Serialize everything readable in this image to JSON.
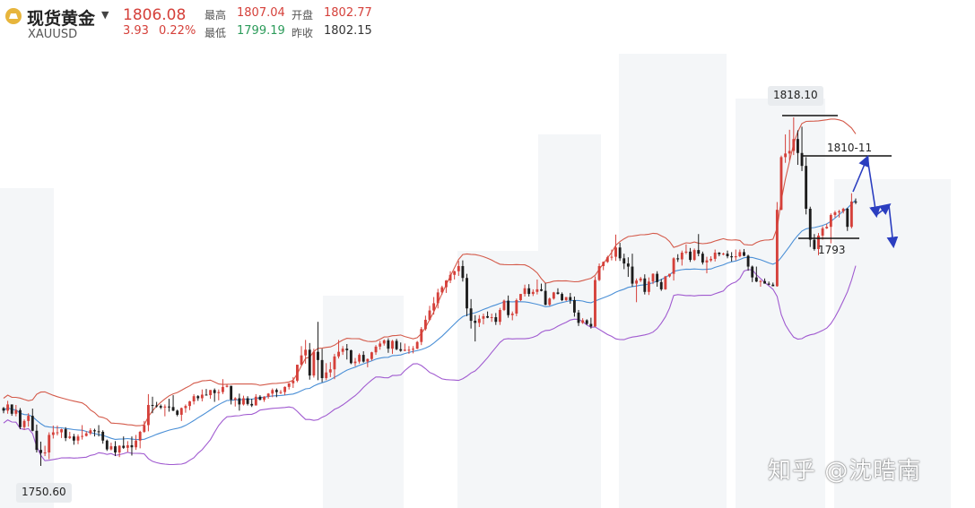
{
  "header": {
    "title": "现货黄金",
    "symbol": "XAUUSD",
    "price": "1806.08",
    "change": "3.93",
    "change_pct": "0.22%",
    "high_label": "最高",
    "high": "1807.04",
    "open_label": "开盘",
    "open": "1802.77",
    "low_label": "最低",
    "low": "1799.19",
    "prev_close_label": "昨收",
    "prev_close": "1802.15"
  },
  "watermark": "知乎 @沈晧南",
  "colors": {
    "up": "#d5403a",
    "down": "#1c1c1c",
    "upper_band": "#d45a4a",
    "middle_band": "#4a8fd6",
    "lower_band": "#a05ad0",
    "arrows": "#2b3ec0"
  },
  "chart_data": {
    "type": "candlestick",
    "indicator": "bollinger bands",
    "y_axis": {
      "min_label": "1750.60",
      "max_label": "1818.10"
    },
    "annotations": [
      {
        "text": "1818.10",
        "kind": "peak-label"
      },
      {
        "text": "1810-11",
        "kind": "resistance-line"
      },
      {
        "text": "1793",
        "kind": "support-line"
      },
      {
        "text": "1750.60",
        "kind": "low-label"
      }
    ],
    "projected_path": "up to 1810-11 resistance, pull back, small rebound, then decline",
    "candles": [
      [
        1761.8,
        1762,
        1760.8,
        1761.3
      ],
      [
        1761.3,
        1763.2,
        1760.7,
        1762.5
      ],
      [
        1762.5,
        1762.5,
        1760.3,
        1760.7
      ],
      [
        1760.7,
        1762.4,
        1760.2,
        1761.4
      ],
      [
        1761.4,
        1761.8,
        1757.7,
        1758.1
      ],
      [
        1758.1,
        1759.6,
        1757.6,
        1759.3
      ],
      [
        1759.3,
        1760.8,
        1758.2,
        1760.3
      ],
      [
        1760.3,
        1761.7,
        1757.3,
        1757.4
      ],
      [
        1757.4,
        1758.6,
        1753.2,
        1753.7
      ],
      [
        1753.7,
        1755.3,
        1750.6,
        1753.1
      ],
      [
        1753.1,
        1754.5,
        1752.5,
        1753.2
      ],
      [
        1753.2,
        1757.1,
        1751.9,
        1756.6
      ],
      [
        1756.6,
        1758.4,
        1755.9,
        1757.1
      ],
      [
        1757.1,
        1758.4,
        1756.5,
        1757.1
      ],
      [
        1757.1,
        1757.8,
        1756,
        1757.7
      ],
      [
        1757.7,
        1758.1,
        1755.4,
        1756
      ],
      [
        1756,
        1757.2,
        1755.8,
        1756.3
      ],
      [
        1756.3,
        1756.8,
        1754.7,
        1755.5
      ],
      [
        1755.5,
        1756.7,
        1754.8,
        1756.3
      ],
      [
        1756.3,
        1758.5,
        1755.7,
        1756.4
      ],
      [
        1756.4,
        1757.3,
        1756.3,
        1756.9
      ],
      [
        1756.9,
        1757.9,
        1756.6,
        1757.5
      ],
      [
        1757.5,
        1757.8,
        1756.3,
        1757.3
      ],
      [
        1757.3,
        1758.5,
        1756.3,
        1757.2
      ],
      [
        1757.2,
        1757.5,
        1754.9,
        1755.5
      ],
      [
        1755.5,
        1755.7,
        1753.5,
        1753.8
      ],
      [
        1753.8,
        1755.1,
        1753.6,
        1754.4
      ],
      [
        1754.4,
        1755.4,
        1752.5,
        1753.2
      ],
      [
        1753.2,
        1754.6,
        1752.3,
        1754.5
      ],
      [
        1754.5,
        1756.3,
        1753.9,
        1754.1
      ],
      [
        1754.1,
        1755.4,
        1753.3,
        1754.6
      ],
      [
        1754.6,
        1756.3,
        1752.6,
        1754.2
      ],
      [
        1754.2,
        1756.6,
        1753.7,
        1755.5
      ],
      [
        1755.5,
        1757.4,
        1754,
        1757.2
      ],
      [
        1757.2,
        1759.3,
        1757,
        1758.5
      ],
      [
        1758.5,
        1764.5,
        1757.3,
        1762.4
      ],
      [
        1762.4,
        1764,
        1760.8,
        1762.3
      ],
      [
        1762.3,
        1763,
        1761.9,
        1762.2
      ],
      [
        1762.2,
        1762.5,
        1761.6,
        1761.9
      ],
      [
        1761.9,
        1762.5,
        1760.2,
        1762.1
      ],
      [
        1762.1,
        1763.6,
        1761.1,
        1762
      ],
      [
        1762,
        1764.3,
        1761.2,
        1761.3
      ],
      [
        1761.3,
        1761.5,
        1760.2,
        1760.5
      ],
      [
        1760.5,
        1761.9,
        1759.3,
        1761.8
      ],
      [
        1761.8,
        1762.5,
        1760.9,
        1762.2
      ],
      [
        1762.2,
        1763.2,
        1761.4,
        1763.1
      ],
      [
        1763.1,
        1764.5,
        1762.5,
        1764.1
      ],
      [
        1764.1,
        1764.3,
        1763.2,
        1763.7
      ],
      [
        1763.7,
        1765.4,
        1763.1,
        1764.4
      ],
      [
        1764.4,
        1765.5,
        1764.3,
        1764.3
      ],
      [
        1764.3,
        1765.3,
        1763.6,
        1765.3
      ],
      [
        1765.3,
        1765.6,
        1763,
        1764.7
      ],
      [
        1764.7,
        1765.4,
        1763.3,
        1764.9
      ],
      [
        1764.9,
        1767.4,
        1764.5,
        1765.9
      ],
      [
        1765.9,
        1766.4,
        1765.8,
        1766.1
      ],
      [
        1766.1,
        1766.1,
        1762.5,
        1763.4
      ],
      [
        1763.4,
        1763.9,
        1762.1,
        1763.7
      ],
      [
        1763.7,
        1764.6,
        1761.3,
        1762.5
      ],
      [
        1762.5,
        1764.2,
        1762.3,
        1763.7
      ],
      [
        1763.7,
        1764.1,
        1762.3,
        1762.6
      ],
      [
        1762.6,
        1763.6,
        1762,
        1762.3
      ],
      [
        1762.3,
        1764.5,
        1762.3,
        1764
      ],
      [
        1764,
        1764.3,
        1763.3,
        1763.4
      ],
      [
        1763.4,
        1764.1,
        1763,
        1764
      ],
      [
        1764,
        1764.7,
        1763.6,
        1764.6
      ],
      [
        1764.6,
        1765.6,
        1763.9,
        1765.3
      ],
      [
        1765.3,
        1765.6,
        1763.9,
        1764.9
      ],
      [
        1764.9,
        1765.3,
        1764.5,
        1764.9
      ],
      [
        1764.9,
        1766,
        1764.3,
        1765.9
      ],
      [
        1765.9,
        1766.6,
        1765.4,
        1766.6
      ],
      [
        1766.6,
        1767.8,
        1765.7,
        1767.1
      ],
      [
        1767.1,
        1770.2,
        1766.8,
        1770.2
      ],
      [
        1770.2,
        1773.8,
        1770,
        1772
      ],
      [
        1772,
        1775,
        1770.4,
        1773.1
      ],
      [
        1773.1,
        1774.4,
        1767.3,
        1768.1
      ],
      [
        1768.1,
        1773.3,
        1767.7,
        1772.7
      ],
      [
        1772.7,
        1778.5,
        1767.2,
        1771.1
      ],
      [
        1771.1,
        1773.3,
        1766.8,
        1767.6
      ],
      [
        1767.6,
        1770.5,
        1767.2,
        1768.7
      ],
      [
        1768.7,
        1770.7,
        1767.8,
        1769.3
      ],
      [
        1769.3,
        1772.3,
        1767.4,
        1771.8
      ],
      [
        1771.8,
        1775,
        1771.4,
        1772.7
      ],
      [
        1772.7,
        1773.8,
        1772.1,
        1773.3
      ],
      [
        1773.3,
        1774.2,
        1771.2,
        1773
      ],
      [
        1773,
        1773.1,
        1770.3,
        1770.5
      ],
      [
        1770.5,
        1771.5,
        1769.9,
        1770.8
      ],
      [
        1770.8,
        1772.4,
        1770.4,
        1772.1
      ],
      [
        1772.1,
        1772.8,
        1770.6,
        1770.8
      ],
      [
        1770.8,
        1771.4,
        1769.7,
        1771.3
      ],
      [
        1771.3,
        1772.7,
        1771,
        1772.6
      ],
      [
        1772.6,
        1774,
        1772.1,
        1773.7
      ],
      [
        1773.7,
        1774.8,
        1773.1,
        1774.3
      ],
      [
        1774.3,
        1775.1,
        1773.9,
        1774.9
      ],
      [
        1774.9,
        1775.3,
        1772.5,
        1773.3
      ],
      [
        1773.3,
        1775,
        1772.3,
        1774.8
      ],
      [
        1774.8,
        1775.2,
        1773,
        1773.2
      ],
      [
        1773.2,
        1774.5,
        1772.7,
        1772.9
      ],
      [
        1772.9,
        1774.3,
        1772.8,
        1773.1
      ],
      [
        1773.1,
        1773.8,
        1772.3,
        1773.1
      ],
      [
        1773.1,
        1773.8,
        1772.4,
        1773.3
      ],
      [
        1773.3,
        1774.8,
        1773.2,
        1774.6
      ],
      [
        1774.6,
        1777.5,
        1774,
        1777.1
      ],
      [
        1777.1,
        1779.7,
        1776.8,
        1778.9
      ],
      [
        1778.9,
        1781.6,
        1778.7,
        1780.7
      ],
      [
        1780.7,
        1783.3,
        1779.9,
        1782.1
      ],
      [
        1782.1,
        1784.9,
        1781.1,
        1784.2
      ],
      [
        1784.2,
        1785.5,
        1783.8,
        1785.2
      ],
      [
        1785.2,
        1786.6,
        1784.1,
        1786.5
      ],
      [
        1786.5,
        1788.3,
        1786,
        1787.6
      ],
      [
        1787.6,
        1788.4,
        1786.7,
        1788.3
      ],
      [
        1788.3,
        1790.3,
        1787.4,
        1789.3
      ],
      [
        1789.3,
        1790.4,
        1786.3,
        1787
      ],
      [
        1787,
        1787.8,
        1779.6,
        1781.1
      ],
      [
        1781.1,
        1782.9,
        1777.2,
        1778.7
      ],
      [
        1778.7,
        1779.8,
        1774.7,
        1778.3
      ],
      [
        1778.3,
        1779.8,
        1777.5,
        1779.1
      ],
      [
        1779.1,
        1780.1,
        1778,
        1779.6
      ],
      [
        1779.6,
        1780.5,
        1779.2,
        1779.3
      ],
      [
        1779.3,
        1780.1,
        1778.5,
        1779.4
      ],
      [
        1779.4,
        1780.2,
        1777.9,
        1778.5
      ],
      [
        1778.5,
        1781.2,
        1777.9,
        1780.8
      ],
      [
        1780.8,
        1782.8,
        1780.6,
        1782.6
      ],
      [
        1782.6,
        1783.6,
        1779.3,
        1779.8
      ],
      [
        1779.8,
        1780.5,
        1778.8,
        1780.1
      ],
      [
        1780.1,
        1783,
        1779.6,
        1782.7
      ],
      [
        1782.7,
        1783.9,
        1782.5,
        1783.9
      ],
      [
        1783.9,
        1785.7,
        1783.4,
        1785
      ],
      [
        1785,
        1785.8,
        1783.4,
        1783.9
      ],
      [
        1783.9,
        1784.8,
        1783.5,
        1784.3
      ],
      [
        1784.3,
        1786.7,
        1783.8,
        1784.8
      ],
      [
        1784.8,
        1785.9,
        1784.4,
        1784.5
      ],
      [
        1784.5,
        1786,
        1781.7,
        1781.8
      ],
      [
        1781.8,
        1783.2,
        1781.6,
        1783
      ],
      [
        1783,
        1784.3,
        1782.8,
        1784.2
      ],
      [
        1784.2,
        1785,
        1783.8,
        1783.9
      ],
      [
        1783.9,
        1784.2,
        1782.5,
        1782.7
      ],
      [
        1782.7,
        1783.3,
        1782.5,
        1783.3
      ],
      [
        1783.3,
        1784.1,
        1782,
        1782.7
      ],
      [
        1782.7,
        1783.4,
        1779.5,
        1780.3
      ],
      [
        1780.3,
        1780.8,
        1777.7,
        1778.3
      ],
      [
        1778.3,
        1779.2,
        1778.1,
        1778.8
      ],
      [
        1778.8,
        1779,
        1777.9,
        1778.1
      ],
      [
        1778.1,
        1779.3,
        1777.2,
        1777.6
      ],
      [
        1777.6,
        1787.3,
        1777.5,
        1786.6
      ],
      [
        1786.6,
        1789.8,
        1786.4,
        1789.3
      ],
      [
        1789.3,
        1790.2,
        1788.5,
        1790.1
      ],
      [
        1790.1,
        1791.3,
        1789.9,
        1791
      ],
      [
        1791,
        1792.5,
        1790.4,
        1791.1
      ],
      [
        1791.1,
        1795.4,
        1790.3,
        1792.9
      ],
      [
        1792.9,
        1793.8,
        1790.3,
        1790.8
      ],
      [
        1790.8,
        1791.7,
        1788.7,
        1789.8
      ],
      [
        1789.8,
        1791,
        1787.2,
        1789.2
      ],
      [
        1789.2,
        1791.7,
        1785.3,
        1785.9
      ],
      [
        1785.9,
        1786.9,
        1782.3,
        1786.5
      ],
      [
        1786.5,
        1787.2,
        1786.2,
        1786.9
      ],
      [
        1786.9,
        1787.7,
        1783.8,
        1784.3
      ],
      [
        1784.3,
        1787.1,
        1783.7,
        1786.3
      ],
      [
        1786.3,
        1787.9,
        1785.8,
        1787.8
      ],
      [
        1787.8,
        1788.3,
        1785.3,
        1786.2
      ],
      [
        1786.2,
        1786.8,
        1784.5,
        1784.8
      ],
      [
        1784.8,
        1787.4,
        1784.7,
        1787.3
      ],
      [
        1787.3,
        1787.8,
        1787.1,
        1787.8
      ],
      [
        1787.8,
        1791,
        1786.5,
        1790.8
      ],
      [
        1790.8,
        1791.6,
        1790.1,
        1790.6
      ],
      [
        1790.6,
        1792.3,
        1789.4,
        1791.9
      ],
      [
        1791.9,
        1793.5,
        1791.6,
        1792.1
      ],
      [
        1792.1,
        1792.8,
        1790.1,
        1790.5
      ],
      [
        1790.5,
        1792.7,
        1790.3,
        1792.4
      ],
      [
        1792.4,
        1795.5,
        1791.2,
        1791.7
      ],
      [
        1791.7,
        1792.1,
        1789.6,
        1790
      ],
      [
        1790,
        1791.1,
        1787.9,
        1790.4
      ],
      [
        1790.4,
        1791.2,
        1790.1,
        1790.7
      ],
      [
        1790.7,
        1792.5,
        1790.2,
        1791.9
      ],
      [
        1791.9,
        1792,
        1791.2,
        1791.6
      ],
      [
        1791.6,
        1791.9,
        1791.4,
        1791.7
      ],
      [
        1791.7,
        1792.3,
        1790.8,
        1791.2
      ],
      [
        1791.2,
        1792,
        1790.2,
        1791
      ],
      [
        1791,
        1792.5,
        1790.4,
        1791.2
      ],
      [
        1791.2,
        1792.5,
        1791,
        1792
      ],
      [
        1792,
        1792.6,
        1791.2,
        1791.3
      ],
      [
        1791.3,
        1791.5,
        1788.4,
        1789.2
      ],
      [
        1789.2,
        1789.4,
        1786.2,
        1787.1
      ],
      [
        1787.1,
        1789.2,
        1786.2,
        1786.3
      ],
      [
        1786.3,
        1786.6,
        1785.3,
        1786.4
      ],
      [
        1786.4,
        1786.9,
        1785.9,
        1785.9
      ],
      [
        1785.9,
        1786.3,
        1785.6,
        1785.7
      ],
      [
        1785.7,
        1786.1,
        1785.4,
        1785.4
      ],
      [
        1785.4,
        1801.7,
        1785.3,
        1800.2
      ],
      [
        1800.2,
        1810.7,
        1800.1,
        1810.4
      ],
      [
        1810.4,
        1814.8,
        1809.3,
        1811.1
      ],
      [
        1811.1,
        1815.7,
        1809.8,
        1811.6
      ],
      [
        1811.6,
        1818.1,
        1810.8,
        1813.9
      ],
      [
        1813.9,
        1815.6,
        1808.9,
        1811.2
      ],
      [
        1811.2,
        1816.3,
        1807.7,
        1808.7
      ],
      [
        1808.7,
        1810.4,
        1799.3,
        1800.4
      ],
      [
        1800.4,
        1800.8,
        1793,
        1794.4
      ],
      [
        1794.4,
        1795.5,
        1792.3,
        1792.6
      ],
      [
        1792.6,
        1795.7,
        1791.4,
        1795.2
      ],
      [
        1795.2,
        1797,
        1794.4,
        1796.6
      ],
      [
        1796.6,
        1797.5,
        1796.5,
        1796.9
      ],
      [
        1796.9,
        1799.5,
        1793.7,
        1799.2
      ],
      [
        1799.2,
        1800,
        1798.7,
        1799.7
      ],
      [
        1799.7,
        1800.2,
        1798.7,
        1799.9
      ],
      [
        1799.9,
        1800.6,
        1799.5,
        1800.4
      ],
      [
        1800.4,
        1800.6,
        1796.1,
        1796.9
      ],
      [
        1796.9,
        1803.4,
        1796.6,
        1801.8
      ],
      [
        1801.8,
        1802.4,
        1801.3,
        1801.6
      ]
    ]
  }
}
